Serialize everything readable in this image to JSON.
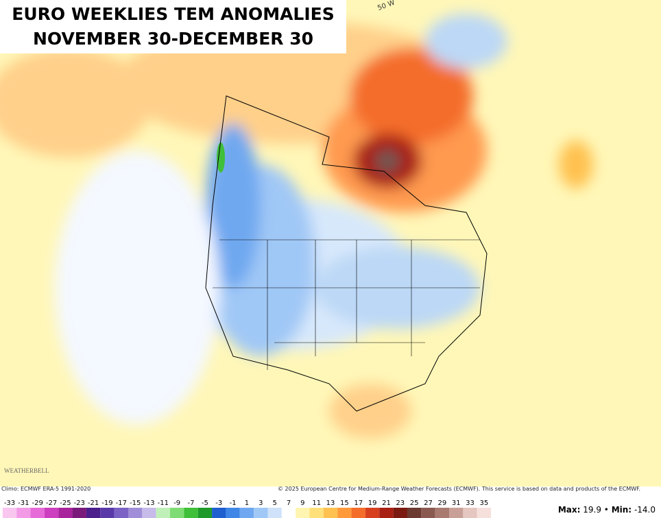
{
  "header": {
    "title_line1": "EURO WEEKLIES TEM ANOMALIES",
    "title_line2": "NOVEMBER 30-DECEMBER 30"
  },
  "map": {
    "longitude_label": "50 W",
    "logo": "WEATHERBELL"
  },
  "footer": {
    "climo": "Climo: ECMWF ERA-5 1991-2020",
    "credit": "© 2025 European Centre for Medium-Range Weather Forecasts (ECMWF). This service is based on data and products of the ECMWF.",
    "max_label": "Max",
    "max_value": "19.9",
    "separator": "•",
    "min_label": "Min",
    "min_value": "-14.0"
  },
  "legend": {
    "ticks": [
      -33,
      -31,
      -29,
      -27,
      -25,
      -23,
      -21,
      -19,
      -17,
      -15,
      -13,
      -11,
      -9,
      -7,
      -5,
      -3,
      -1,
      1,
      3,
      5,
      7,
      9,
      11,
      13,
      15,
      17,
      19,
      21,
      23,
      25,
      27,
      29,
      31,
      33,
      35
    ],
    "colors": [
      "#f9c6f0",
      "#f29ae6",
      "#e66ad8",
      "#cc3fbf",
      "#a8239c",
      "#7a1a7a",
      "#4b1f8c",
      "#5a3aa8",
      "#7b62c4",
      "#a08ed8",
      "#c7bbea",
      "#bff0b8",
      "#7fdc74",
      "#3fbf3a",
      "#1f9a2a",
      "#1f5fd0",
      "#3f86e6",
      "#6fa8f0",
      "#a0c8f6",
      "#cfe2fa",
      "#ffffff",
      "#fff5b0",
      "#ffe07a",
      "#ffc14f",
      "#ff9a3a",
      "#f46d2a",
      "#d6401f",
      "#a81f14",
      "#7a1a10",
      "#6b3a30",
      "#8a5a50",
      "#a87a70",
      "#c8a098",
      "#e6c6c0",
      "#f6e0dc"
    ]
  }
}
